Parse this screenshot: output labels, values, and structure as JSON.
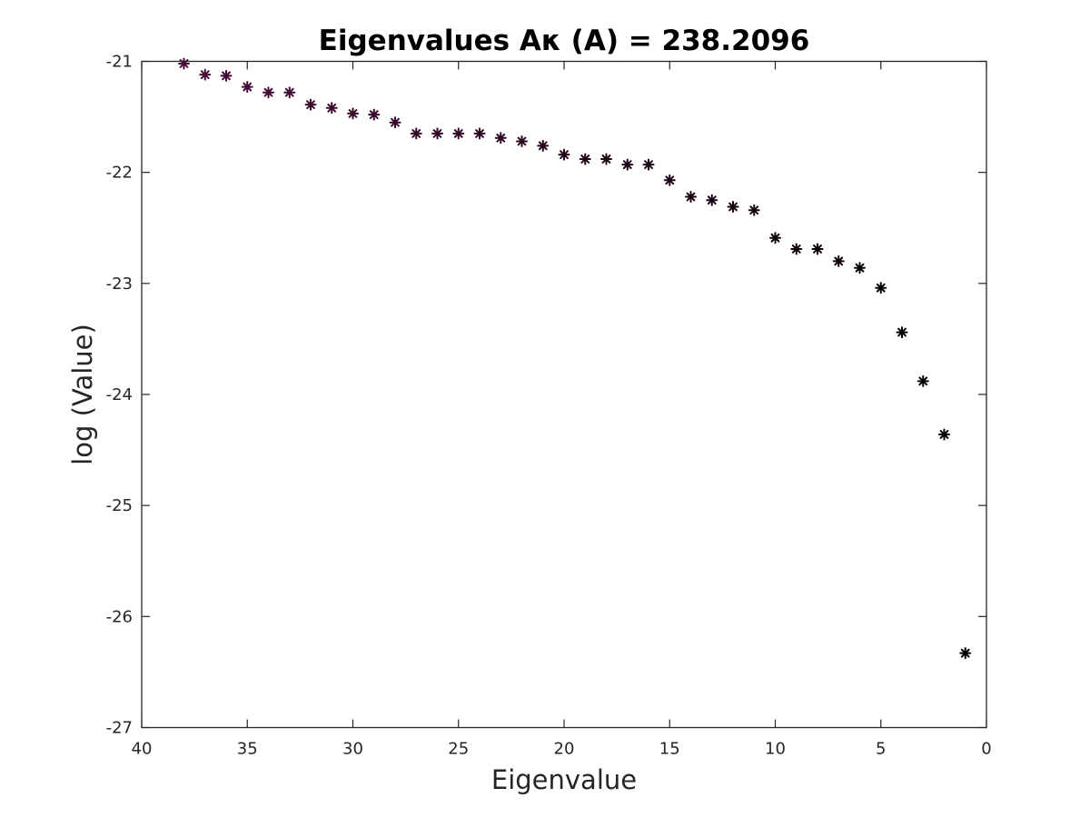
{
  "chart_data": {
    "type": "scatter",
    "title": "Eigenvalues Aκ (A) = 238.2096",
    "xlabel": "Eigenvalue",
    "ylabel": "log (Value)",
    "xlim": [
      40,
      0
    ],
    "ylim": [
      -27,
      -21
    ],
    "x_reversed": true,
    "xticks": [
      "40",
      "35",
      "30",
      "25",
      "20",
      "15",
      "10",
      "5",
      "0"
    ],
    "yticks": [
      "-21",
      "-22",
      "-23",
      "-24",
      "-25",
      "-26",
      "-27"
    ],
    "grid": false,
    "marker": "*",
    "marker_color_start": "#4a0a3a",
    "marker_color_end": "#000000",
    "x": [
      38,
      37,
      36,
      35,
      34,
      33,
      32,
      31,
      30,
      29,
      28,
      27,
      26,
      25,
      24,
      23,
      22,
      21,
      20,
      19,
      18,
      17,
      16,
      15,
      14,
      13,
      12,
      11,
      10,
      9,
      8,
      7,
      6,
      5,
      4,
      3,
      2,
      1
    ],
    "y": [
      -21.02,
      -21.12,
      -21.13,
      -21.23,
      -21.28,
      -21.28,
      -21.39,
      -21.42,
      -21.47,
      -21.48,
      -21.55,
      -21.65,
      -21.65,
      -21.65,
      -21.65,
      -21.69,
      -21.72,
      -21.76,
      -21.84,
      -21.88,
      -21.88,
      -21.93,
      -21.93,
      -22.07,
      -22.22,
      -22.25,
      -22.31,
      -22.34,
      -22.59,
      -22.69,
      -22.69,
      -22.8,
      -22.86,
      -23.04,
      -23.44,
      -23.88,
      -24.36,
      -26.33
    ]
  }
}
